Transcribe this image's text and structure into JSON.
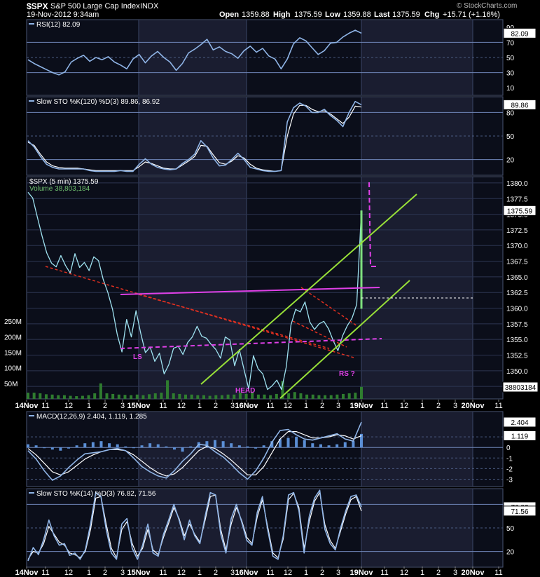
{
  "header": {
    "symbol": "$SPX",
    "name": "S&P 500 Large Cap Index",
    "exchange": "INDX",
    "date": "19-Nov-2012 9:34am",
    "open_label": "Open",
    "open": "1359.88",
    "high_label": "High",
    "high": "1375.59",
    "low_label": "Low",
    "low": "1359.88",
    "last_label": "Last",
    "last": "1375.59",
    "chg_label": "Chg",
    "chg": "+15.71 (+1.16%)",
    "watermark": "© StockCharts.com"
  },
  "colors": {
    "background": "#000000",
    "panel": "#0b0e1a",
    "shade": "#1a1d30",
    "grid": "#2c3552",
    "refline": "#6f86b8",
    "line": "#8fb4e6",
    "price": "#9fe2f0",
    "volume": "#2f7d2f",
    "pink": "#e040e8",
    "red": "#e03020",
    "green": "#98e038",
    "white": "#ffffff"
  },
  "chart_data": [
    {
      "type": "line",
      "title": "RSI(12) 82.09",
      "ylim": [
        0,
        100
      ],
      "y_ticks": [
        "90",
        "70",
        "50",
        "30",
        "10"
      ],
      "value_label": "82.09",
      "series": [
        {
          "name": "RSI(12)",
          "values": [
            47,
            42,
            38,
            34,
            30,
            27,
            31,
            44,
            49,
            53,
            45,
            50,
            47,
            51,
            44,
            40,
            35,
            48,
            54,
            43,
            52,
            58,
            50,
            44,
            33,
            42,
            56,
            61,
            67,
            74,
            60,
            64,
            58,
            55,
            49,
            59,
            65,
            57,
            62,
            52,
            48,
            35,
            48,
            68,
            76,
            72,
            63,
            54,
            59,
            69,
            70,
            77,
            82,
            86,
            82
          ]
        }
      ]
    },
    {
      "type": "line",
      "title": "Slow STO %K(120) %D(3) 89.86, 86.92",
      "ylim": [
        0,
        100
      ],
      "y_ticks": [
        "80",
        "50",
        "20"
      ],
      "value_label": "89.86",
      "series": [
        {
          "name": "%K(120)",
          "values": [
            44,
            36,
            24,
            14,
            10,
            8,
            8,
            8,
            8,
            8,
            6,
            5,
            5,
            5,
            5,
            6,
            5,
            5,
            14,
            21,
            14,
            10,
            8,
            7,
            8,
            15,
            20,
            27,
            44,
            36,
            22,
            12,
            13,
            20,
            28,
            20,
            10,
            8,
            6,
            5,
            5,
            6,
            68,
            86,
            92,
            88,
            80,
            80,
            84,
            76,
            70,
            62,
            80,
            94,
            89.86
          ]
        },
        {
          "name": "%D(3)",
          "values": [
            42,
            38,
            27,
            17,
            12,
            10,
            9,
            9,
            9,
            8,
            7,
            6,
            6,
            6,
            6,
            6,
            6,
            6,
            11,
            17,
            15,
            12,
            9,
            8,
            8,
            13,
            18,
            24,
            38,
            37,
            26,
            16,
            14,
            18,
            25,
            22,
            14,
            9,
            7,
            6,
            5,
            6,
            50,
            78,
            89,
            89,
            84,
            81,
            82,
            78,
            72,
            66,
            74,
            88,
            86.92
          ]
        }
      ]
    },
    {
      "type": "line",
      "title": "$SPX (5 min) 1375.59",
      "volume_label": "Volume 38,803,184",
      "ylim": [
        1345.5,
        1381
      ],
      "y_ticks": [
        "1380.0",
        "1377.5",
        "1375.0",
        "1372.5",
        "1370.0",
        "1367.5",
        "1365.0",
        "1362.5",
        "1360.0",
        "1357.5",
        "1355.0",
        "1352.5",
        "1350.0",
        "1347.5"
      ],
      "last_value_label": "1375.59",
      "volume_ticks": [
        "250M",
        "200M",
        "150M",
        "100M",
        "50M"
      ],
      "volume_last_label": "38803184",
      "series": [
        {
          "name": "$SPX (5 min)",
          "values": [
            1378.5,
            1377.6,
            1374.5,
            1371.5,
            1368.8,
            1367.2,
            1366.6,
            1368.4,
            1366.8,
            1365.6,
            1368.7,
            1366.5,
            1367.3,
            1366.0,
            1368.2,
            1367.6,
            1364.6,
            1362.5,
            1359.8,
            1355.8,
            1353.0,
            1358.2,
            1355.4,
            1359.6,
            1356.0,
            1352.9,
            1353.8,
            1351.5,
            1352.8,
            1349.5,
            1351.0,
            1353.6,
            1353.9,
            1352.6,
            1354.5,
            1355.4,
            1357.1,
            1355.5,
            1355.2,
            1354.2,
            1353.4,
            1352.0,
            1355.4,
            1354.9,
            1350.8,
            1353.4,
            1350.2,
            1347.1,
            1352.4,
            1350.3,
            1349.5,
            1347.0,
            1347.6,
            1348.5,
            1347.0,
            1350.6,
            1357.3,
            1359.8,
            1359.4,
            1361.0,
            1357.8,
            1356.6,
            1357.5,
            1357.9,
            1356.7,
            1354.8,
            1353.2,
            1355.6,
            1357.2,
            1358.4,
            1360.6,
            1375.59
          ]
        }
      ],
      "volume_values_m": [
        20,
        20,
        18,
        15,
        14,
        12,
        12,
        10,
        9,
        10,
        12,
        18,
        50,
        18,
        16,
        14,
        13,
        12,
        14,
        12,
        15,
        18,
        20,
        60,
        18,
        16,
        14,
        14,
        12,
        12,
        10,
        12,
        12,
        14,
        14,
        20,
        16,
        22,
        14,
        14,
        12,
        16,
        58,
        18,
        22,
        18,
        14,
        14,
        12,
        12,
        12,
        14,
        16,
        18,
        20,
        38.8
      ]
    },
    {
      "type": "bar",
      "title": "MACD(12,26,9) 2.404, 1.119, 1.285",
      "ylim": [
        -3.7,
        3.4
      ],
      "y_ticks": [
        "1",
        "0",
        "-1",
        "-2",
        "-3"
      ],
      "value_labels": [
        "2.404",
        "1.119"
      ],
      "series": [
        {
          "name": "MACD(12,26,9)",
          "values": [
            -0.3,
            -1.1,
            -2.2,
            -3.1,
            -2.7,
            -1.9,
            -1.2,
            -0.6,
            -0.5,
            -0.4,
            -0.2,
            -0.1,
            -0.3,
            -1.0,
            -1.8,
            -2.3,
            -2.7,
            -2.9,
            -2.2,
            -1.3,
            -0.6,
            0.3,
            0.2,
            -0.4,
            -0.9,
            -1.6,
            -2.4,
            -3.0,
            -2.2,
            -1.0,
            0.5,
            1.6,
            1.7,
            1.2,
            0.8,
            0.7,
            0.9,
            1.1,
            1.3,
            0.8,
            0.6,
            2.4
          ]
        },
        {
          "name": "Signal",
          "values": [
            -0.1,
            -0.7,
            -1.5,
            -2.3,
            -2.6,
            -2.3,
            -1.7,
            -1.1,
            -0.7,
            -0.4,
            -0.2,
            -0.2,
            -0.3,
            -0.7,
            -1.3,
            -1.9,
            -2.4,
            -2.7,
            -2.5,
            -1.9,
            -1.1,
            -0.3,
            0.1,
            -0.1,
            -0.6,
            -1.2,
            -1.9,
            -2.6,
            -2.6,
            -1.8,
            -0.5,
            0.8,
            1.5,
            1.5,
            1.2,
            0.9,
            0.9,
            1.0,
            1.2,
            1.1,
            0.8,
            1.119
          ]
        },
        {
          "name": "Histogram",
          "values": [
            0.3,
            0.2,
            0.0,
            -0.2,
            -0.3,
            -0.1,
            0.2,
            0.4,
            0.5,
            0.6,
            0.4,
            0.3,
            0.1,
            0.0,
            0.2,
            0.4,
            0.3,
            0.1,
            -0.2,
            -0.4,
            0.1,
            0.5,
            0.6,
            0.7,
            0.6,
            0.4,
            0.2,
            0.1,
            -0.1,
            0.2,
            0.6,
            0.8,
            0.9,
            1.0,
            0.7,
            0.4,
            0.3,
            0.2,
            0.3,
            0.5,
            0.6,
            1.285
          ]
        }
      ]
    },
    {
      "type": "line",
      "title": "Slow STO %K(14) %D(3) 76.82, 71.56",
      "ylim": [
        0,
        100
      ],
      "y_ticks": [
        "80",
        "50",
        "20"
      ],
      "value_labels": [
        "76.82",
        "71.56"
      ],
      "series": [
        {
          "name": "%K(14)",
          "values": [
            8,
            25,
            16,
            35,
            60,
            40,
            28,
            30,
            15,
            18,
            10,
            22,
            55,
            95,
            90,
            48,
            18,
            10,
            55,
            62,
            24,
            10,
            28,
            55,
            18,
            14,
            42,
            60,
            80,
            60,
            35,
            60,
            40,
            30,
            65,
            95,
            92,
            42,
            18,
            62,
            80,
            58,
            34,
            28,
            70,
            90,
            48,
            14,
            10,
            40,
            92,
            95,
            72,
            18,
            65,
            88,
            98,
            48,
            30,
            22,
            50,
            72,
            90,
            92,
            76.82
          ]
        },
        {
          "name": "%D(3)",
          "values": [
            10,
            20,
            18,
            30,
            52,
            42,
            32,
            28,
            18,
            16,
            12,
            20,
            48,
            88,
            90,
            55,
            24,
            12,
            48,
            58,
            30,
            14,
            24,
            48,
            22,
            16,
            38,
            56,
            76,
            62,
            40,
            55,
            42,
            32,
            60,
            90,
            92,
            48,
            22,
            55,
            76,
            60,
            38,
            30,
            64,
            86,
            52,
            18,
            12,
            36,
            86,
            94,
            76,
            24,
            58,
            84,
            95,
            54,
            34,
            24,
            46,
            68,
            86,
            90,
            71.56
          ]
        }
      ]
    }
  ],
  "time_axis": {
    "top": [
      "14Nov",
      "11",
      "12",
      "1",
      "2",
      "3",
      "15Nov",
      "11",
      "12",
      "1",
      "2",
      "3",
      "16Nov",
      "11",
      "12",
      "1",
      "2",
      "3",
      "19Nov",
      "11",
      "12",
      "1",
      "2",
      "3",
      "20Nov",
      "11"
    ],
    "bottom": [
      "14Nov",
      "11",
      "12",
      "1",
      "2",
      "3",
      "15Nov",
      "11",
      "12",
      "1",
      "2",
      "3",
      "16Nov",
      "11",
      "12",
      "1",
      "2",
      "3",
      "19Nov",
      "11",
      "12",
      "1",
      "2",
      "3",
      "20Nov",
      "11"
    ]
  },
  "annotations": {
    "ls": "LS",
    "head": "HEAD",
    "rs": "RS ?"
  }
}
